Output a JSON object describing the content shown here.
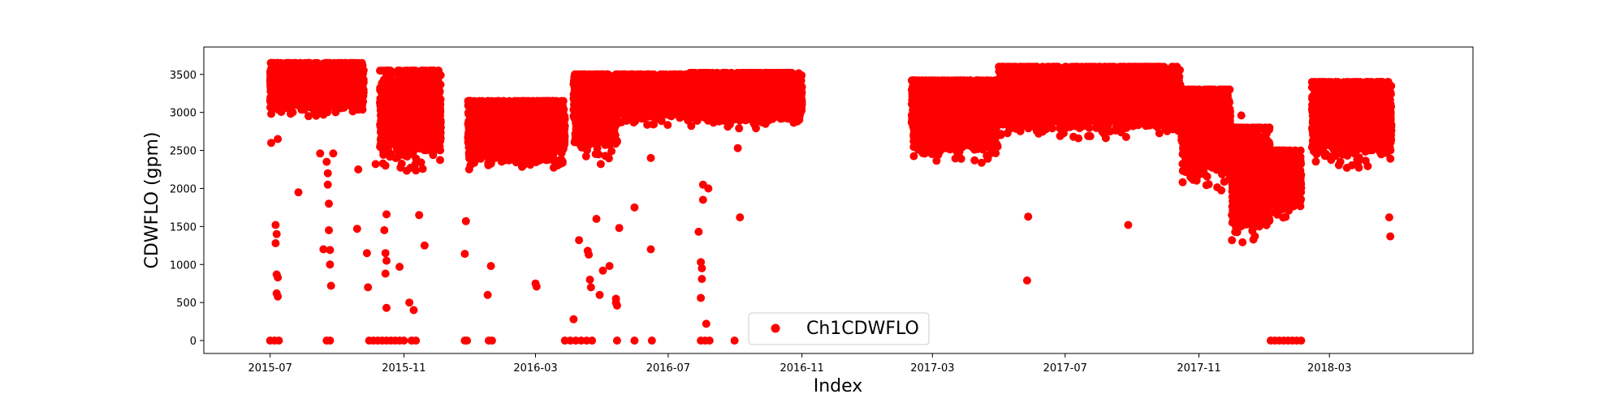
{
  "chart_data": {
    "type": "scatter",
    "title": "",
    "xlabel": "Index",
    "ylabel": "CDWFLO (gpm)",
    "x_range": [
      "2015-05-01",
      "2018-07-11"
    ],
    "ylim": [
      -170,
      3860
    ],
    "x_ticks": [
      "2015-07",
      "2015-11",
      "2016-03",
      "2016-07",
      "2016-11",
      "2017-03",
      "2017-07",
      "2017-11",
      "2018-03"
    ],
    "x_tick_dates": [
      "2015-07-01",
      "2015-11-01",
      "2016-03-01",
      "2016-07-01",
      "2016-11-01",
      "2017-03-01",
      "2017-07-01",
      "2017-11-01",
      "2018-03-01"
    ],
    "y_ticks": [
      0,
      500,
      1000,
      1500,
      2000,
      2500,
      3000,
      3500
    ],
    "grid": false,
    "legend_position": "lower-center",
    "series": [
      {
        "name": "Ch1CDWFLO",
        "color": "#ff0000",
        "marker": "circle",
        "bands": [
          {
            "start": "2015-07-01",
            "end": "2015-09-25",
            "low": 2700,
            "high": 3650
          },
          {
            "start": "2015-10-10",
            "end": "2015-12-05",
            "low": 1800,
            "high": 3550
          },
          {
            "start": "2015-12-30",
            "end": "2016-03-28",
            "low": 1900,
            "high": 3150
          },
          {
            "start": "2016-04-05",
            "end": "2016-05-15",
            "low": 2000,
            "high": 3500
          },
          {
            "start": "2016-05-16",
            "end": "2016-07-20",
            "low": 2600,
            "high": 3500
          },
          {
            "start": "2016-07-21",
            "end": "2016-11-01",
            "low": 2550,
            "high": 3520
          },
          {
            "start": "2017-02-10",
            "end": "2017-04-30",
            "low": 1950,
            "high": 3420
          },
          {
            "start": "2017-05-01",
            "end": "2017-10-15",
            "low": 2350,
            "high": 3600
          },
          {
            "start": "2017-10-16",
            "end": "2017-11-30",
            "low": 1500,
            "high": 3300
          },
          {
            "start": "2017-12-01",
            "end": "2018-01-05",
            "low": 700,
            "high": 2800
          },
          {
            "start": "2018-01-06",
            "end": "2018-02-03",
            "low": 1300,
            "high": 2500
          },
          {
            "start": "2018-02-13",
            "end": "2018-04-27",
            "low": 1900,
            "high": 3400
          }
        ],
        "points": [
          {
            "x": "2015-07-01",
            "y": 0
          },
          {
            "x": "2015-07-05",
            "y": 0
          },
          {
            "x": "2015-07-09",
            "y": 0
          },
          {
            "x": "2015-07-02",
            "y": 2600
          },
          {
            "x": "2015-07-08",
            "y": 2650
          },
          {
            "x": "2015-07-06",
            "y": 1520
          },
          {
            "x": "2015-07-07",
            "y": 1400
          },
          {
            "x": "2015-07-06",
            "y": 1280
          },
          {
            "x": "2015-07-07",
            "y": 870
          },
          {
            "x": "2015-07-08",
            "y": 830
          },
          {
            "x": "2015-07-07",
            "y": 620
          },
          {
            "x": "2015-07-08",
            "y": 580
          },
          {
            "x": "2015-07-27",
            "y": 1950
          },
          {
            "x": "2015-08-16",
            "y": 2460
          },
          {
            "x": "2015-08-19",
            "y": 1200
          },
          {
            "x": "2015-08-22",
            "y": 2350
          },
          {
            "x": "2015-08-23",
            "y": 2200
          },
          {
            "x": "2015-08-23",
            "y": 2050
          },
          {
            "x": "2015-08-24",
            "y": 1800
          },
          {
            "x": "2015-08-24",
            "y": 1450
          },
          {
            "x": "2015-08-25",
            "y": 1190
          },
          {
            "x": "2015-08-25",
            "y": 1000
          },
          {
            "x": "2015-08-26",
            "y": 720
          },
          {
            "x": "2015-08-22",
            "y": 0
          },
          {
            "x": "2015-08-25",
            "y": 0
          },
          {
            "x": "2015-08-28",
            "y": 2460
          },
          {
            "x": "2015-09-20",
            "y": 2250
          },
          {
            "x": "2015-09-19",
            "y": 1470
          },
          {
            "x": "2015-09-28",
            "y": 1150
          },
          {
            "x": "2015-09-29",
            "y": 700
          },
          {
            "x": "2015-10-06",
            "y": 2320
          },
          {
            "x": "2015-10-15",
            "y": 2620
          },
          {
            "x": "2015-10-15",
            "y": 2300
          },
          {
            "x": "2015-10-16",
            "y": 1660
          },
          {
            "x": "2015-10-14",
            "y": 1450
          },
          {
            "x": "2015-10-15",
            "y": 1150
          },
          {
            "x": "2015-10-16",
            "y": 1050
          },
          {
            "x": "2015-10-15",
            "y": 880
          },
          {
            "x": "2015-10-16",
            "y": 430
          },
          {
            "x": "2015-10-28",
            "y": 970
          },
          {
            "x": "2015-11-06",
            "y": 500
          },
          {
            "x": "2015-11-10",
            "y": 400
          },
          {
            "x": "2015-11-20",
            "y": 1250
          },
          {
            "x": "2015-11-15",
            "y": 1650
          },
          {
            "x": "2015-10-16",
            "y": 3480
          },
          {
            "x": "2015-09-30",
            "y": 0
          },
          {
            "x": "2015-10-04",
            "y": 0
          },
          {
            "x": "2015-10-08",
            "y": 0
          },
          {
            "x": "2015-10-12",
            "y": 0
          },
          {
            "x": "2015-10-16",
            "y": 0
          },
          {
            "x": "2015-10-20",
            "y": 0
          },
          {
            "x": "2015-10-24",
            "y": 0
          },
          {
            "x": "2015-10-28",
            "y": 0
          },
          {
            "x": "2015-11-01",
            "y": 0
          },
          {
            "x": "2015-11-08",
            "y": 0
          },
          {
            "x": "2015-11-12",
            "y": 0
          },
          {
            "x": "2015-12-28",
            "y": 1570
          },
          {
            "x": "2015-12-27",
            "y": 1140
          },
          {
            "x": "2015-12-27",
            "y": 0
          },
          {
            "x": "2015-12-29",
            "y": 0
          },
          {
            "x": "2016-01-17",
            "y": 600
          },
          {
            "x": "2016-01-20",
            "y": 980
          },
          {
            "x": "2016-01-18",
            "y": 0
          },
          {
            "x": "2016-01-21",
            "y": 0
          },
          {
            "x": "2016-03-01",
            "y": 750
          },
          {
            "x": "2016-03-02",
            "y": 710
          },
          {
            "x": "2016-04-05",
            "y": 280
          },
          {
            "x": "2016-04-10",
            "y": 1320
          },
          {
            "x": "2016-04-18",
            "y": 1180
          },
          {
            "x": "2016-04-19",
            "y": 1130
          },
          {
            "x": "2016-04-20",
            "y": 800
          },
          {
            "x": "2016-04-21",
            "y": 700
          },
          {
            "x": "2016-04-26",
            "y": 1600
          },
          {
            "x": "2016-04-30",
            "y": 2320
          },
          {
            "x": "2016-04-29",
            "y": 600
          },
          {
            "x": "2016-05-02",
            "y": 920
          },
          {
            "x": "2016-05-08",
            "y": 980
          },
          {
            "x": "2016-05-14",
            "y": 500
          },
          {
            "x": "2016-05-15",
            "y": 460
          },
          {
            "x": "2016-05-17",
            "y": 1480
          },
          {
            "x": "2016-05-31",
            "y": 1750
          },
          {
            "x": "2016-05-14",
            "y": 550
          },
          {
            "x": "2016-03-28",
            "y": 0
          },
          {
            "x": "2016-04-02",
            "y": 0
          },
          {
            "x": "2016-04-07",
            "y": 0
          },
          {
            "x": "2016-04-12",
            "y": 0
          },
          {
            "x": "2016-04-17",
            "y": 0
          },
          {
            "x": "2016-04-22",
            "y": 0
          },
          {
            "x": "2016-05-15",
            "y": 0
          },
          {
            "x": "2016-05-31",
            "y": 0
          },
          {
            "x": "2016-06-16",
            "y": 0
          },
          {
            "x": "2016-06-15",
            "y": 1200
          },
          {
            "x": "2016-06-15",
            "y": 2400
          },
          {
            "x": "2016-07-29",
            "y": 1430
          },
          {
            "x": "2016-07-31",
            "y": 1030
          },
          {
            "x": "2016-08-01",
            "y": 950
          },
          {
            "x": "2016-08-01",
            "y": 810
          },
          {
            "x": "2016-07-31",
            "y": 560
          },
          {
            "x": "2016-08-02",
            "y": 1850
          },
          {
            "x": "2016-08-02",
            "y": 2050
          },
          {
            "x": "2016-08-07",
            "y": 2000
          },
          {
            "x": "2016-08-05",
            "y": 220
          },
          {
            "x": "2016-07-31",
            "y": 0
          },
          {
            "x": "2016-08-04",
            "y": 0
          },
          {
            "x": "2016-08-08",
            "y": 0
          },
          {
            "x": "2016-08-31",
            "y": 0
          },
          {
            "x": "2016-09-03",
            "y": 2530
          },
          {
            "x": "2016-09-05",
            "y": 1620
          },
          {
            "x": "2017-05-28",
            "y": 1630
          },
          {
            "x": "2017-05-27",
            "y": 790
          },
          {
            "x": "2017-08-28",
            "y": 1520
          },
          {
            "x": "2018-01-06",
            "y": 0
          },
          {
            "x": "2018-01-10",
            "y": 0
          },
          {
            "x": "2018-01-14",
            "y": 0
          },
          {
            "x": "2018-01-18",
            "y": 0
          },
          {
            "x": "2018-01-22",
            "y": 0
          },
          {
            "x": "2018-01-26",
            "y": 0
          },
          {
            "x": "2018-01-30",
            "y": 0
          },
          {
            "x": "2018-02-03",
            "y": 0
          },
          {
            "x": "2018-04-01",
            "y": 3390
          },
          {
            "x": "2018-04-25",
            "y": 1620
          },
          {
            "x": "2018-04-26",
            "y": 1370
          },
          {
            "x": "2017-12-10",
            "y": 2960
          }
        ]
      }
    ]
  }
}
